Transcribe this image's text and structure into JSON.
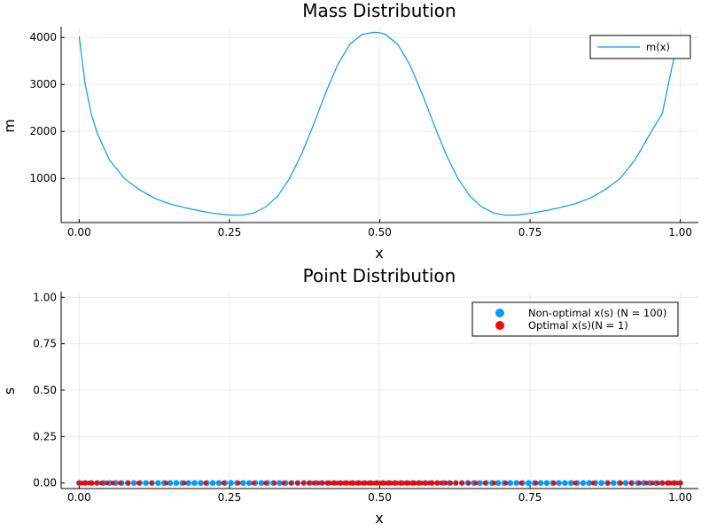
{
  "chart_data": [
    {
      "type": "line",
      "title": "Mass Distribution",
      "xlabel": "x",
      "ylabel": "m",
      "xlim": [
        -0.03,
        1.03
      ],
      "ylim": [
        60,
        4230
      ],
      "xticks": [
        0,
        0.25,
        0.5,
        0.75,
        1.0
      ],
      "xtick_labels": [
        "0.00",
        "0.25",
        "0.50",
        "0.75",
        "1.00"
      ],
      "yticks": [
        1000,
        2000,
        3000,
        4000
      ],
      "ytick_labels": [
        "1000",
        "2000",
        "3000",
        "4000"
      ],
      "grid": true,
      "legend_position": "top-right",
      "series": [
        {
          "name": "m(x)",
          "color": "#009AFA",
          "x": [
            0.0,
            0.01,
            0.02,
            0.03,
            0.05,
            0.075,
            0.1,
            0.125,
            0.15,
            0.175,
            0.2,
            0.225,
            0.25,
            0.27,
            0.29,
            0.31,
            0.33,
            0.35,
            0.37,
            0.39,
            0.41,
            0.43,
            0.45,
            0.47,
            0.49,
            0.5,
            0.51,
            0.53,
            0.55,
            0.57,
            0.59,
            0.61,
            0.63,
            0.65,
            0.67,
            0.69,
            0.71,
            0.73,
            0.75,
            0.775,
            0.8,
            0.825,
            0.85,
            0.875,
            0.9,
            0.925,
            0.95,
            0.97,
            0.98,
            0.99,
            1.0
          ],
          "y": [
            4020,
            3000,
            2380,
            1960,
            1400,
            1000,
            760,
            580,
            460,
            380,
            310,
            255,
            220,
            215,
            260,
            390,
            620,
            1000,
            1520,
            2150,
            2820,
            3420,
            3850,
            4060,
            4110,
            4100,
            4060,
            3850,
            3420,
            2820,
            2150,
            1520,
            1000,
            620,
            390,
            260,
            215,
            220,
            255,
            310,
            380,
            460,
            580,
            760,
            1000,
            1400,
            1960,
            2380,
            3000,
            3600,
            4020
          ]
        }
      ]
    },
    {
      "type": "scatter",
      "title": "Point Distribution",
      "xlabel": "x",
      "ylabel": "s",
      "xlim": [
        -0.03,
        1.03
      ],
      "ylim": [
        -0.03,
        1.03
      ],
      "xticks": [
        0,
        0.25,
        0.5,
        0.75,
        1.0
      ],
      "xtick_labels": [
        "0.00",
        "0.25",
        "0.50",
        "0.75",
        "1.00"
      ],
      "yticks": [
        0,
        0.25,
        0.5,
        0.75,
        1.0
      ],
      "ytick_labels": [
        "0.00",
        "0.25",
        "0.50",
        "0.75",
        "1.00"
      ],
      "grid": true,
      "legend_position": "top-right",
      "series": [
        {
          "name": "Non-optimal x(s) (N = 100)",
          "color": "#009AFA",
          "x": [
            0.0,
            0.0101,
            0.0202,
            0.0303,
            0.0404,
            0.0505,
            0.0606,
            0.0707,
            0.0808,
            0.0909,
            0.101,
            0.1111,
            0.1212,
            0.1313,
            0.1414,
            0.1515,
            0.1616,
            0.1717,
            0.1818,
            0.1919,
            0.202,
            0.2121,
            0.2222,
            0.2323,
            0.2424,
            0.2525,
            0.2626,
            0.2727,
            0.2828,
            0.2929,
            0.303,
            0.3131,
            0.3232,
            0.3333,
            0.3434,
            0.3535,
            0.3636,
            0.3737,
            0.3838,
            0.3939,
            0.404,
            0.4141,
            0.4242,
            0.4343,
            0.4444,
            0.4545,
            0.4646,
            0.4747,
            0.4848,
            0.4949,
            0.5051,
            0.5152,
            0.5253,
            0.5354,
            0.5455,
            0.5556,
            0.5657,
            0.5758,
            0.5859,
            0.596,
            0.6061,
            0.6162,
            0.6263,
            0.6364,
            0.6465,
            0.6566,
            0.6667,
            0.6768,
            0.6869,
            0.697,
            0.7071,
            0.7172,
            0.7273,
            0.7374,
            0.7475,
            0.7576,
            0.7677,
            0.7778,
            0.7879,
            0.798,
            0.8081,
            0.8182,
            0.8283,
            0.8384,
            0.8485,
            0.8586,
            0.8687,
            0.8788,
            0.8889,
            0.899,
            0.9091,
            0.9192,
            0.9293,
            0.9394,
            0.9495,
            0.9596,
            0.9697,
            0.9798,
            0.9899,
            1.0
          ],
          "y": 0
        },
        {
          "name": "Optimal x(s)(N = 1)",
          "color": "#FF0000",
          "x": [
            0.0,
            0.005,
            0.01,
            0.016,
            0.022,
            0.029,
            0.037,
            0.046,
            0.056,
            0.068,
            0.082,
            0.099,
            0.12,
            0.145,
            0.175,
            0.21,
            0.24,
            0.265,
            0.29,
            0.31,
            0.325,
            0.34,
            0.352,
            0.363,
            0.373,
            0.382,
            0.39,
            0.398,
            0.405,
            0.412,
            0.418,
            0.424,
            0.43,
            0.436,
            0.441,
            0.446,
            0.451,
            0.456,
            0.461,
            0.466,
            0.471,
            0.476,
            0.481,
            0.486,
            0.491,
            0.496,
            0.5,
            0.504,
            0.509,
            0.514,
            0.519,
            0.524,
            0.529,
            0.534,
            0.539,
            0.544,
            0.549,
            0.554,
            0.559,
            0.564,
            0.57,
            0.576,
            0.582,
            0.588,
            0.595,
            0.602,
            0.61,
            0.618,
            0.627,
            0.637,
            0.648,
            0.66,
            0.675,
            0.69,
            0.71,
            0.735,
            0.76,
            0.79,
            0.825,
            0.855,
            0.88,
            0.901,
            0.918,
            0.932,
            0.944,
            0.954,
            0.963,
            0.971,
            0.978,
            0.984,
            0.99,
            0.995,
            1.0
          ],
          "y": 0
        }
      ]
    }
  ]
}
